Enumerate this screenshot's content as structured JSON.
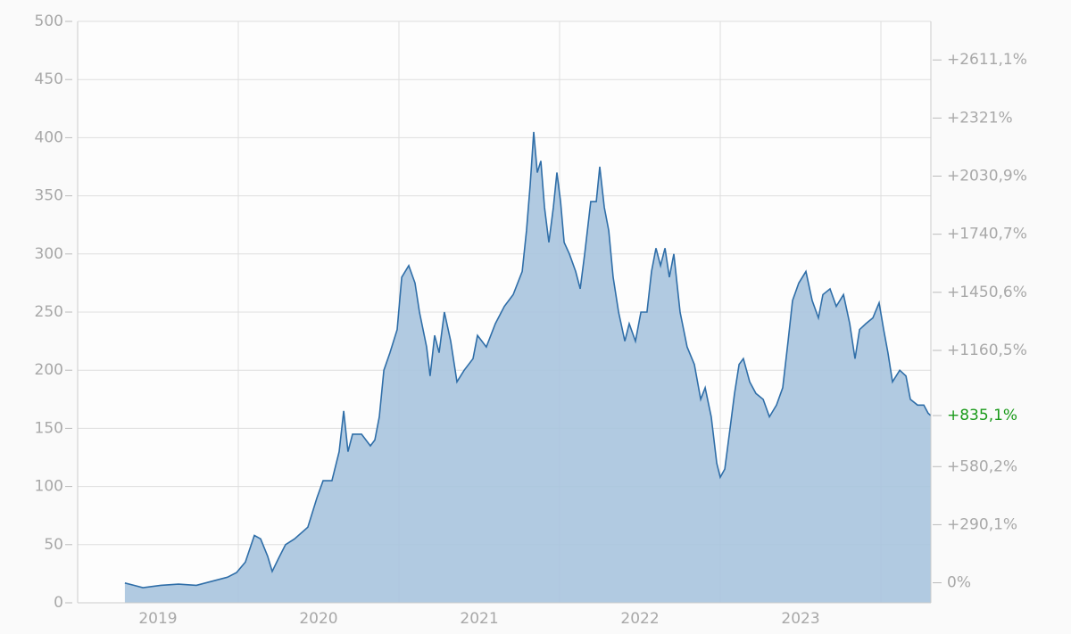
{
  "chart_data": {
    "type": "area",
    "x_labels": [
      "2019",
      "2020",
      "2021",
      "2022",
      "2023"
    ],
    "xlim": [
      2019,
      2024.311
    ],
    "xticks": [
      2020,
      2021,
      2022,
      2023,
      2024
    ],
    "ylim": [
      0,
      500
    ],
    "yticks": [
      0,
      50,
      100,
      150,
      200,
      250,
      300,
      350,
      400,
      450,
      500
    ],
    "y2lim": [
      -100,
      2803.6
    ],
    "y2ticks": [
      {
        "value": 0,
        "label": "0%"
      },
      {
        "value": 290.1,
        "label": "+290,1%"
      },
      {
        "value": 580.2,
        "label": "+580,2%"
      },
      {
        "value": 1160.5,
        "label": "+1160,5%"
      },
      {
        "value": 1450.6,
        "label": "+1450,6%"
      },
      {
        "value": 1740.7,
        "label": "+1740,7%"
      },
      {
        "value": 2030.9,
        "label": "+2030,9%"
      },
      {
        "value": 2321,
        "label": "+2321%"
      },
      {
        "value": 2611.1,
        "label": "+2611,1%"
      }
    ],
    "last_change": {
      "value": 835.1,
      "label": "+835,1%",
      "color": "#1a9a1a"
    },
    "grid": true,
    "color": "#2f6ea8",
    "fill": "#a9c4de",
    "x": [
      2019.294,
      2019.35,
      2019.406,
      2019.517,
      2019.628,
      2019.739,
      2019.85,
      2019.933,
      2019.989,
      2020.044,
      2020.1,
      2020.139,
      2020.183,
      2020.211,
      2020.25,
      2020.294,
      2020.35,
      2020.433,
      2020.489,
      2020.528,
      2020.583,
      2020.628,
      2020.656,
      2020.683,
      2020.711,
      2020.767,
      2020.822,
      2020.85,
      2020.878,
      2020.906,
      2020.944,
      2020.989,
      2021.017,
      2021.061,
      2021.1,
      2021.128,
      2021.172,
      2021.194,
      2021.222,
      2021.25,
      2021.283,
      2021.322,
      2021.361,
      2021.406,
      2021.461,
      2021.489,
      2021.544,
      2021.6,
      2021.656,
      2021.711,
      2021.767,
      2021.794,
      2021.817,
      2021.839,
      2021.861,
      2021.883,
      2021.906,
      2021.933,
      2021.961,
      2021.983,
      2022.006,
      2022.028,
      2022.061,
      2022.1,
      2022.128,
      2022.156,
      2022.194,
      2022.228,
      2022.25,
      2022.278,
      2022.306,
      2022.333,
      2022.367,
      2022.406,
      2022.433,
      2022.472,
      2022.506,
      2022.544,
      2022.572,
      2022.6,
      2022.628,
      2022.656,
      2022.683,
      2022.711,
      2022.75,
      2022.794,
      2022.839,
      2022.878,
      2022.906,
      2022.944,
      2022.978,
      2023.0,
      2023.028,
      2023.061,
      2023.089,
      2023.117,
      2023.144,
      2023.183,
      2023.222,
      2023.267,
      2023.306,
      2023.35,
      2023.389,
      2023.422,
      2023.45,
      2023.489,
      2023.533,
      2023.572,
      2023.611,
      2023.639,
      2023.683,
      2023.722,
      2023.767,
      2023.806,
      2023.839,
      2023.867,
      2023.906,
      2023.95,
      2023.989,
      2024.017,
      2024.044,
      2024.072,
      2024.117,
      2024.156,
      2024.183,
      2024.228,
      2024.267,
      2024.294,
      2024.311
    ],
    "values": [
      17,
      15,
      13,
      15,
      16,
      15,
      19,
      22,
      26,
      35,
      58,
      55,
      40,
      27,
      38,
      50,
      55,
      65,
      90,
      105,
      105,
      130,
      165,
      130,
      145,
      145,
      135,
      140,
      160,
      200,
      215,
      235,
      280,
      290,
      275,
      250,
      220,
      195,
      230,
      215,
      250,
      225,
      190,
      200,
      210,
      230,
      220,
      240,
      255,
      265,
      285,
      320,
      360,
      405,
      370,
      380,
      340,
      310,
      340,
      370,
      345,
      310,
      300,
      285,
      270,
      300,
      345,
      345,
      375,
      340,
      320,
      280,
      250,
      225,
      240,
      225,
      250,
      250,
      285,
      305,
      290,
      305,
      280,
      300,
      250,
      220,
      205,
      175,
      185,
      160,
      120,
      108,
      115,
      150,
      180,
      205,
      210,
      190,
      180,
      175,
      160,
      170,
      185,
      225,
      260,
      275,
      285,
      260,
      245,
      265,
      270,
      255,
      265,
      240,
      210,
      235,
      240,
      245,
      258,
      235,
      215,
      190,
      200,
      195,
      175,
      170,
      170,
      163,
      161
    ]
  }
}
